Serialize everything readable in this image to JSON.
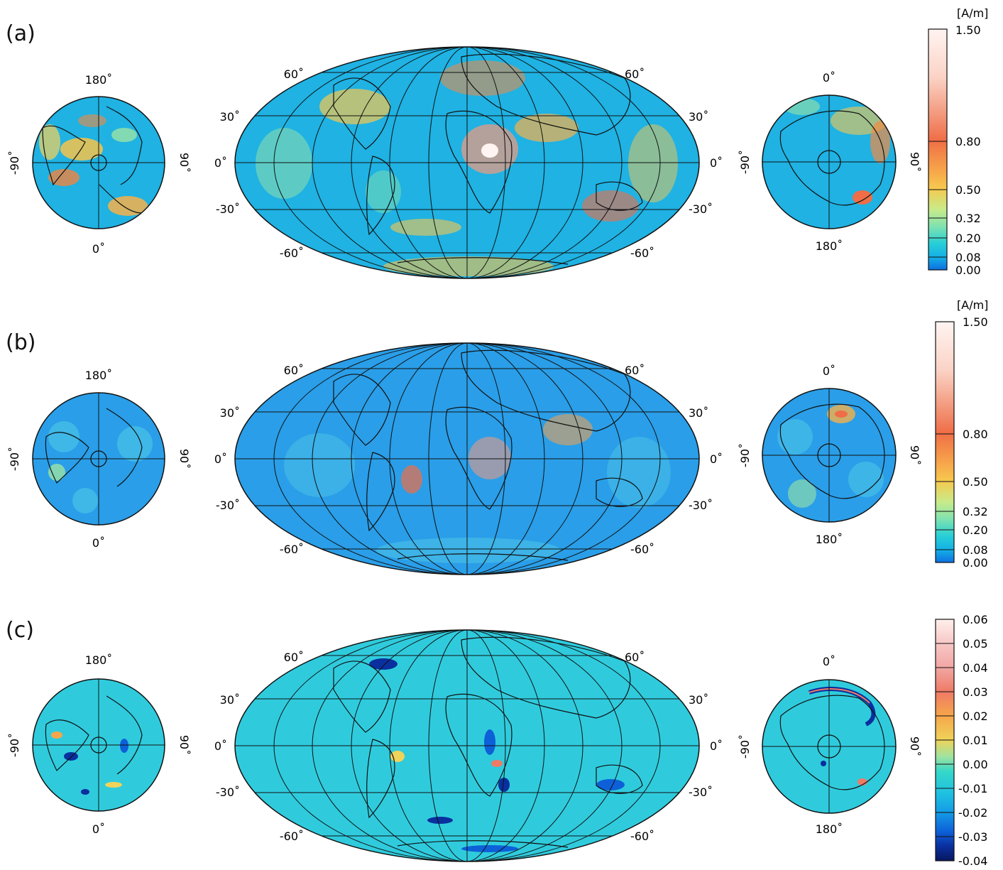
{
  "panels": [
    {
      "label": "(a)",
      "type": "amplitude",
      "unit": "[A/m]",
      "scale": {
        "ticks": [
          "1.50",
          "0.80",
          "0.50",
          "0.32",
          "0.20",
          "0.08",
          "0.00"
        ],
        "colors": [
          "#fff4f1",
          "#fbd3c6",
          "#f39a7e",
          "#ef6e47",
          "#f7a24a",
          "#f7c84e",
          "#f3e77a",
          "#c8eb8a",
          "#7fe2b0",
          "#27cfd6",
          "#14aee6",
          "#1383e1",
          "#0d6fe0"
        ]
      }
    },
    {
      "label": "(b)",
      "type": "amplitude",
      "unit": "[A/m]",
      "scale": {
        "ticks": [
          "1.50",
          "0.80",
          "0.50",
          "0.32",
          "0.20",
          "0.08",
          "0.00"
        ],
        "colors": [
          "#fff4f1",
          "#fbd3c6",
          "#f39a7e",
          "#ef6e47",
          "#f7a24a",
          "#f7c84e",
          "#f3e77a",
          "#c8eb8a",
          "#7fe2b0",
          "#27cfd6",
          "#14aee6",
          "#1383e1",
          "#0d6fe0"
        ]
      }
    },
    {
      "label": "(c)",
      "type": "difference",
      "unit": "",
      "scale": {
        "ticks": [
          "0.06",
          "0.05",
          "0.04",
          "0.03",
          "0.02",
          "0.01",
          "0.00",
          "-0.01",
          "-0.02",
          "-0.03",
          "-0.04"
        ],
        "colors": [
          "#fff0ec",
          "#f7c7c6",
          "#f1a7a3",
          "#ef7a66",
          "#f6a64b",
          "#efd35a",
          "#9ee3a0",
          "#35d8c8",
          "#1fc1e0",
          "#149be6",
          "#0d60d8",
          "#0a2f9e",
          "#06175e"
        ]
      }
    }
  ],
  "north_polar": {
    "top": "180˚",
    "bottom": "0˚",
    "left": "-90˚",
    "right": "90˚"
  },
  "south_polar": {
    "top": "0˚",
    "bottom": "180˚",
    "left": "-90˚",
    "right": "90˚"
  },
  "mollweide": {
    "lat_labels": [
      "60˚",
      "30˚",
      "0˚",
      "-30˚",
      "-60˚"
    ],
    "right_lat_labels": [
      "60˚",
      "30˚",
      "0˚",
      "-30˚",
      "-60˚"
    ]
  },
  "colors": {
    "ocean_a": "#1fb2e3",
    "ocean_b": "#2a9ee8",
    "ocean_c": "#2fcbdd",
    "grid": "#111111"
  }
}
